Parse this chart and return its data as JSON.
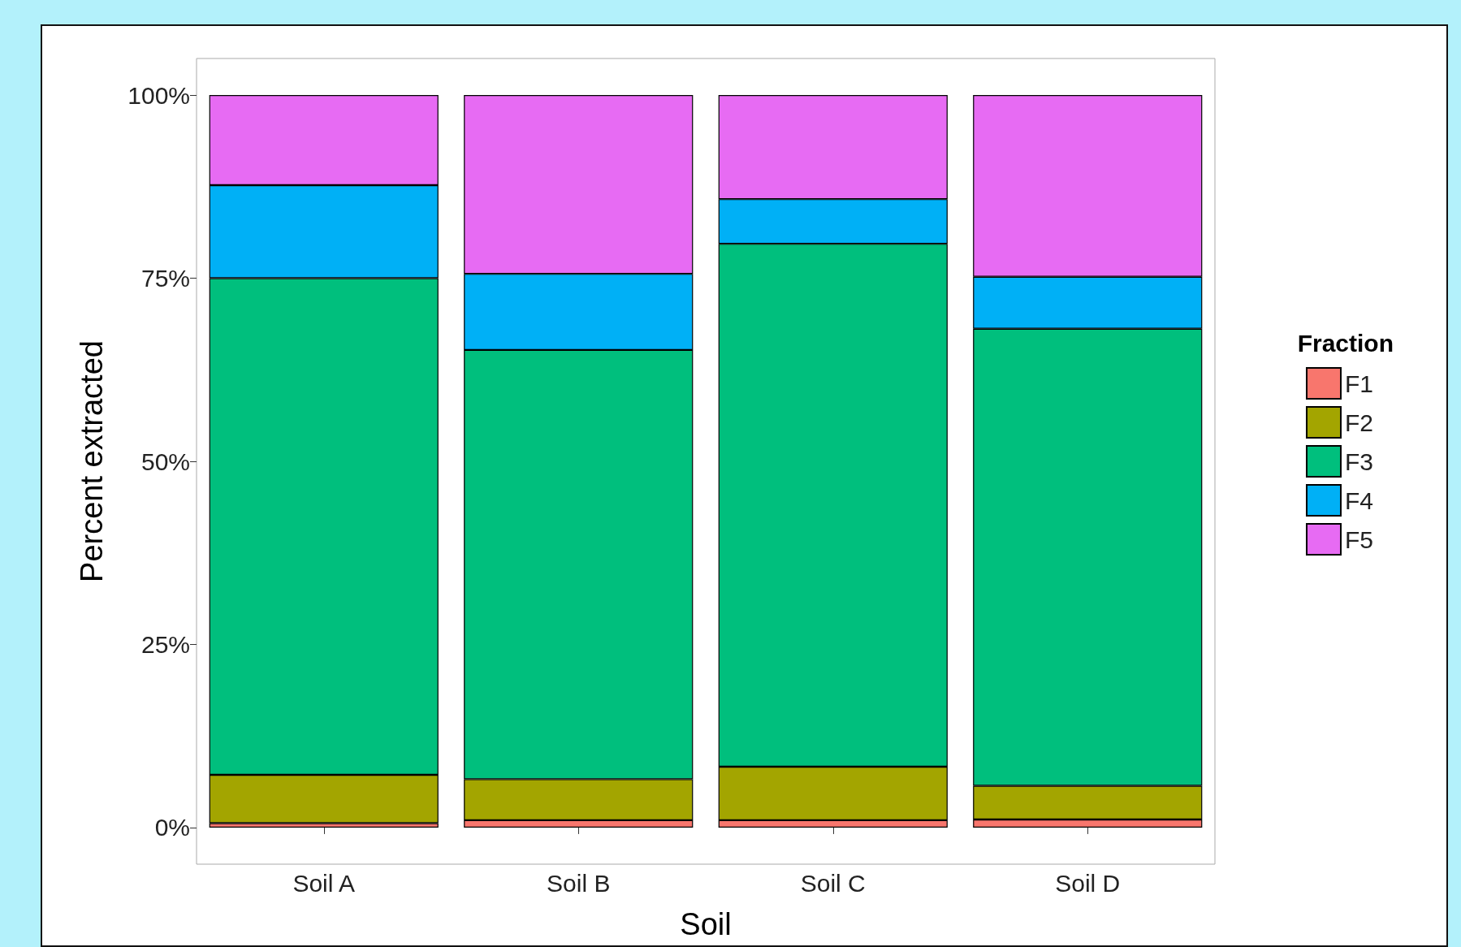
{
  "chart_data": {
    "type": "bar",
    "stacked": true,
    "xlabel": "Soil",
    "ylabel": "Percent extracted",
    "legend_title": "Fraction",
    "legend": "right",
    "grid": false,
    "categories": [
      "Soil A",
      "Soil B",
      "Soil C",
      "Soil D"
    ],
    "ylim": [
      -5,
      105
    ],
    "yticks": [
      {
        "value": 0,
        "label": "0%"
      },
      {
        "value": 25,
        "label": "25%"
      },
      {
        "value": 50,
        "label": "50%"
      },
      {
        "value": 75,
        "label": "75%"
      },
      {
        "value": 100,
        "label": "100%"
      }
    ],
    "series": [
      {
        "name": "F1",
        "color": "#f8766d",
        "values": [
          0.6,
          1.0,
          1.0,
          1.1
        ]
      },
      {
        "name": "F2",
        "color": "#a3a500",
        "values": [
          6.6,
          5.6,
          7.3,
          4.6
        ]
      },
      {
        "name": "F3",
        "color": "#00bf7d",
        "values": [
          67.8,
          58.6,
          71.4,
          62.4
        ]
      },
      {
        "name": "F4",
        "color": "#00b0f6",
        "values": [
          12.7,
          10.4,
          6.1,
          7.1
        ]
      },
      {
        "name": "F5",
        "color": "#e76bf3",
        "values": [
          12.3,
          24.4,
          14.2,
          24.8
        ]
      }
    ]
  }
}
